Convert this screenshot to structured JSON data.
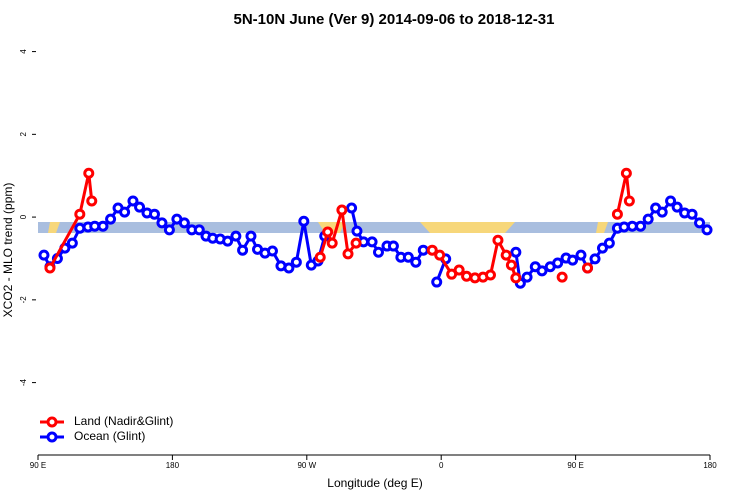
{
  "chart_data": {
    "type": "line",
    "title": "5N-10N June (Ver 9)   2014-09-06 to 2018-12-31",
    "xlabel": "Longitude (deg E)",
    "ylabel": "XCO2 - MLO trend (ppm)",
    "xlim": [
      90,
      540
    ],
    "ylim": [
      -5.75,
      4.28
    ],
    "xticks": [
      {
        "value": 90,
        "label": "90 E"
      },
      {
        "value": 180,
        "label": "180"
      },
      {
        "value": 270,
        "label": "90 W"
      },
      {
        "value": 360,
        "label": "0"
      },
      {
        "value": 450,
        "label": "90 E"
      },
      {
        "value": 540,
        "label": "180"
      }
    ],
    "yticks": [
      -4,
      -2,
      0,
      2,
      4
    ],
    "legend": "bottom-left",
    "series": [
      {
        "name": "Land (Nadir&Glint)",
        "color": "#ff0000",
        "x": [
          98,
          118,
          124,
          126,
          null,
          279,
          284,
          287,
          293.5,
          297.6,
          303,
          null,
          354,
          359,
          367,
          372,
          377,
          382.6,
          388,
          393,
          398,
          403.5,
          407,
          410,
          null,
          441,
          null,
          458,
          null,
          478,
          484,
          486
        ],
        "values": [
          -1.23,
          0.07,
          1.06,
          0.39,
          null,
          -0.97,
          -0.36,
          -0.63,
          0.17,
          -0.89,
          -0.63,
          null,
          -0.8,
          -0.92,
          -1.38,
          -1.28,
          -1.43,
          -1.47,
          -1.45,
          -1.4,
          -0.56,
          -0.92,
          -1.16,
          -1.47,
          null,
          -1.45,
          null,
          -1.23,
          null,
          0.07,
          1.06,
          0.39
        ]
      },
      {
        "name": "Ocean (Glint)",
        "color": "#0000ff",
        "x": [
          94,
          98,
          103,
          108,
          113,
          118,
          123.5,
          128,
          133.5,
          138.6,
          143.6,
          148,
          153.6,
          158,
          163,
          168,
          173,
          178,
          183,
          188,
          193,
          198,
          202.5,
          207,
          212,
          217,
          222.5,
          227,
          232.6,
          237,
          242,
          247,
          252.7,
          258,
          263,
          268,
          273,
          277.5,
          282,
          null,
          300,
          303.6,
          308,
          313.7,
          318,
          323.7,
          328,
          333,
          338,
          343,
          348,
          null,
          357,
          363,
          null,
          410,
          413,
          417.5,
          423,
          427.5,
          433,
          438,
          443.6,
          448,
          453.6,
          458,
          463,
          468,
          472.6,
          478,
          482.5,
          488,
          493.5,
          498.6,
          503.6,
          508,
          513.6,
          518,
          523,
          528,
          533,
          538
        ],
        "values": [
          -0.92,
          -1.2,
          -1.0,
          -0.75,
          -0.63,
          -0.27,
          -0.24,
          -0.22,
          -0.22,
          -0.05,
          0.22,
          0.12,
          0.39,
          0.24,
          0.1,
          0.07,
          -0.14,
          -0.31,
          -0.05,
          -0.14,
          -0.31,
          -0.31,
          -0.46,
          -0.51,
          -0.53,
          -0.58,
          -0.46,
          -0.8,
          -0.46,
          -0.78,
          -0.87,
          -0.82,
          -1.18,
          -1.23,
          -1.09,
          -0.1,
          -1.16,
          -1.06,
          -0.46,
          null,
          0.22,
          -0.34,
          -0.6,
          -0.6,
          -0.85,
          -0.7,
          -0.7,
          -0.97,
          -0.97,
          -1.09,
          -0.8,
          null,
          -1.57,
          -1.01,
          null,
          -0.85,
          -1.6,
          -1.45,
          -1.2,
          -1.3,
          -1.2,
          -1.11,
          -0.99,
          -1.04,
          -0.92,
          -1.23,
          -1.01,
          -0.75,
          -0.63,
          -0.27,
          -0.24,
          -0.22,
          -0.22,
          -0.05,
          0.22,
          0.12,
          0.39,
          0.24,
          0.1,
          0.07,
          -0.14,
          -0.31
        ]
      }
    ]
  }
}
